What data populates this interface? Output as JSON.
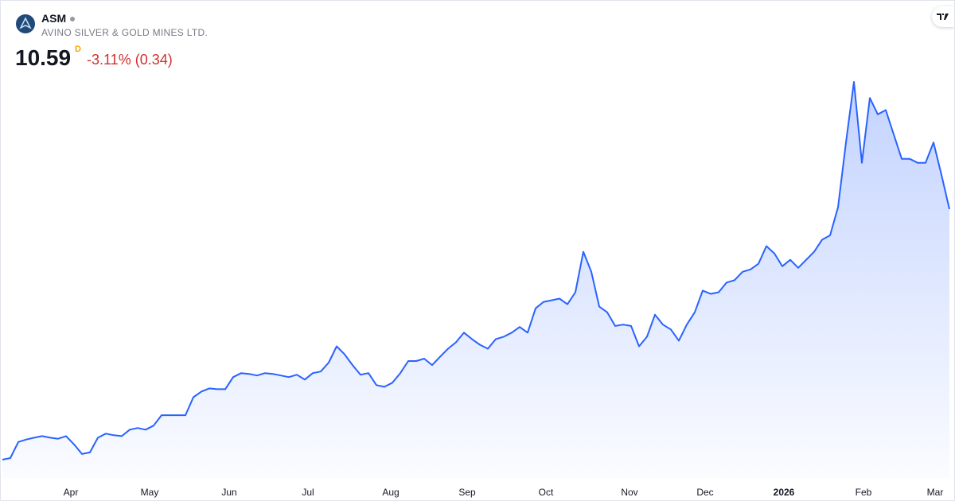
{
  "header": {
    "symbol": "ASM",
    "name": "AVINO SILVER & GOLD MINES LTD.",
    "price": "10.59",
    "interval": "D",
    "change": "-3.11% (0.34)"
  },
  "chart_data": {
    "type": "area",
    "color": "#2962ff",
    "values": [
      1.24,
      1.3,
      1.9,
      1.99,
      2.06,
      2.12,
      2.06,
      2.02,
      2.12,
      1.81,
      1.45,
      1.51,
      2.06,
      2.21,
      2.15,
      2.12,
      2.36,
      2.42,
      2.36,
      2.51,
      2.9,
      2.9,
      2.9,
      2.9,
      3.57,
      3.78,
      3.9,
      3.87,
      3.87,
      4.32,
      4.47,
      4.44,
      4.38,
      4.47,
      4.44,
      4.38,
      4.32,
      4.41,
      4.23,
      4.47,
      4.53,
      4.86,
      5.47,
      5.17,
      4.77,
      4.41,
      4.47,
      4.02,
      3.96,
      4.11,
      4.47,
      4.92,
      4.92,
      5.01,
      4.77,
      5.08,
      5.38,
      5.62,
      5.98,
      5.74,
      5.53,
      5.38,
      5.74,
      5.83,
      5.98,
      6.19,
      5.98,
      6.89,
      7.13,
      7.19,
      7.25,
      7.04,
      7.49,
      9.0,
      8.25,
      6.95,
      6.74,
      6.23,
      6.28,
      6.23,
      5.47,
      5.83,
      6.65,
      6.28,
      6.1,
      5.68,
      6.28,
      6.74,
      7.55,
      7.43,
      7.49,
      7.85,
      7.94,
      8.25,
      8.34,
      8.55,
      9.21,
      8.94,
      8.46,
      8.7,
      8.4,
      8.7,
      9.0,
      9.45,
      9.61,
      10.66,
      13.08,
      15.34,
      12.32,
      14.74,
      14.13,
      14.29,
      13.38,
      12.47,
      12.47,
      12.32,
      12.32,
      13.08,
      11.87,
      10.59
    ],
    "xticks": [
      {
        "value": 8.6,
        "label": "Apr"
      },
      {
        "value": 18.5,
        "label": "May"
      },
      {
        "value": 28.5,
        "label": "Jun"
      },
      {
        "value": 38.4,
        "label": "Jul"
      },
      {
        "value": 48.8,
        "label": "Aug"
      },
      {
        "value": 58.4,
        "label": "Sep"
      },
      {
        "value": 68.3,
        "label": "Oct"
      },
      {
        "value": 78.8,
        "label": "Nov"
      },
      {
        "value": 88.3,
        "label": "Dec"
      },
      {
        "value": 98.2,
        "label": "2026"
      },
      {
        "value": 108.2,
        "label": "Feb"
      },
      {
        "value": 117.2,
        "label": "Mar"
      }
    ]
  }
}
